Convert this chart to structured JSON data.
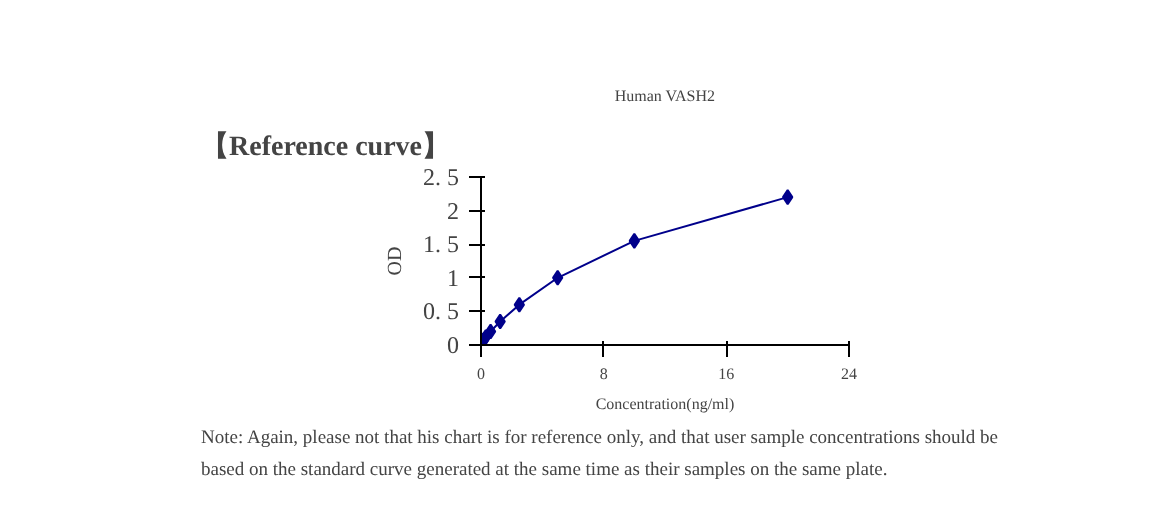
{
  "chart_data": {
    "type": "line",
    "title": "Human VASH2",
    "xlabel": "Concentration(ng/ml)",
    "ylabel": "OD",
    "x": [
      0,
      0.156,
      0.3125,
      0.625,
      1.25,
      2.5,
      5,
      10,
      20
    ],
    "series": [
      {
        "color": "#00008b",
        "values": [
          0.05,
          0.07,
          0.12,
          0.2,
          0.35,
          0.6,
          1.0,
          1.55,
          2.2
        ]
      }
    ],
    "marker": "diamond",
    "grid": false,
    "xlim": [
      0,
      24
    ],
    "xticks": [
      0,
      8,
      16,
      24
    ],
    "ylim": [
      0,
      2.5
    ],
    "yticks": [
      0,
      {
        "value": 0.5,
        "label": "0. 5"
      },
      1,
      {
        "value": 1.5,
        "label": "1. 5"
      },
      2,
      {
        "value": 2.5,
        "label": "2. 5"
      }
    ],
    "annotations": [
      "【Reference curve】",
      "Note: Again, please not that his chart is for reference only, and that user sample concentrations should be",
      "based on the standard curve generated at the same time as their samples on the same plate."
    ]
  }
}
